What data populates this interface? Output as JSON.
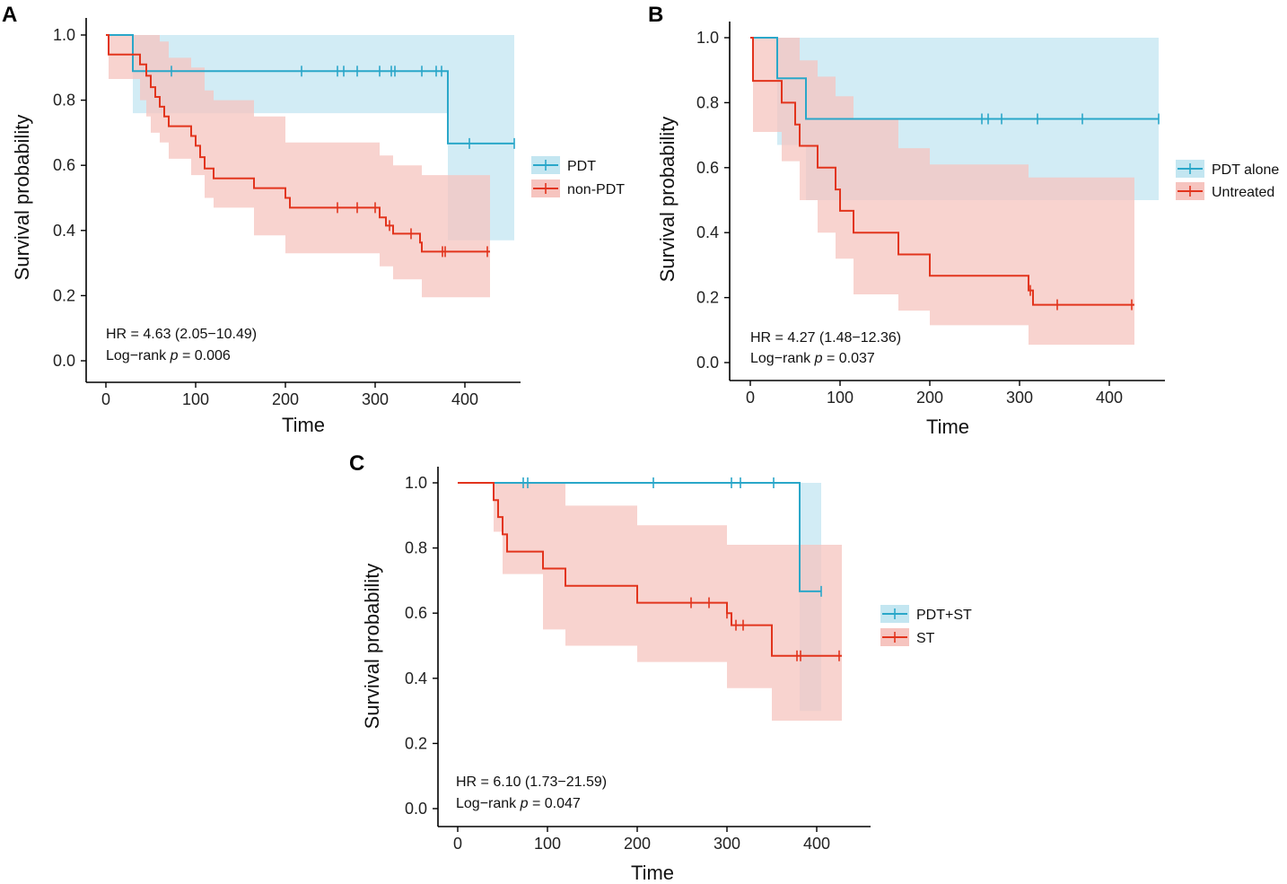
{
  "figure": {
    "colors": {
      "blue": "#2aa7c9",
      "red": "#e2341d",
      "blue_band": "#c3e6f1",
      "red_band": "#f6c4bf"
    }
  },
  "chart_data": [
    {
      "panel": "A",
      "type": "line",
      "subtype": "kaplan-meier",
      "xlabel": "Time",
      "ylabel": "Survival probability",
      "xlim": [
        0,
        460
      ],
      "ylim": [
        0,
        1
      ],
      "xticks": [
        "0",
        "100",
        "200",
        "300",
        "400"
      ],
      "xtick_values": [
        0,
        100,
        200,
        300,
        400
      ],
      "yticks": [
        "0.0",
        "0.2",
        "0.4",
        "0.6",
        "0.8",
        "1.0"
      ],
      "ytick_values": [
        0,
        0.2,
        0.4,
        0.6,
        0.8,
        1.0
      ],
      "legend_position": "right",
      "annotation": {
        "hr": "HR = 4.63 (2.05−10.49)",
        "logrank_prefix": "Log−rank",
        "p_symbol": "p",
        "p_value": "= 0.006"
      },
      "series": [
        {
          "name": "PDT",
          "color": "blue",
          "steps": [
            [
              0,
              1.0
            ],
            [
              30,
              0.889
            ],
            [
              381,
              0.667
            ]
          ],
          "end": 455,
          "ci": [
            [
              0,
              1.0,
              1.0
            ],
            [
              30,
              1.0,
              0.76
            ],
            [
              381,
              1.0,
              0.37
            ]
          ],
          "censors": [
            73,
            218,
            258,
            265,
            280,
            305,
            318,
            322,
            352,
            368,
            374,
            405,
            455
          ]
        },
        {
          "name": "non-PDT",
          "color": "red",
          "steps": [
            [
              0,
              1.0
            ],
            [
              3,
              0.94
            ],
            [
              38,
              0.91
            ],
            [
              45,
              0.875
            ],
            [
              50,
              0.84
            ],
            [
              55,
              0.81
            ],
            [
              60,
              0.78
            ],
            [
              65,
              0.75
            ],
            [
              70,
              0.72
            ],
            [
              95,
              0.69
            ],
            [
              100,
              0.66
            ],
            [
              105,
              0.625
            ],
            [
              110,
              0.59
            ],
            [
              120,
              0.56
            ],
            [
              165,
              0.53
            ],
            [
              200,
              0.5
            ],
            [
              205,
              0.47
            ],
            [
              305,
              0.44
            ],
            [
              312,
              0.415
            ],
            [
              320,
              0.39
            ],
            [
              350,
              0.363
            ],
            [
              352,
              0.335
            ]
          ],
          "end": 428,
          "ci": [
            [
              0,
              1.0,
              1.0
            ],
            [
              3,
              1.0,
              0.865
            ],
            [
              38,
              1.0,
              0.8
            ],
            [
              45,
              1.0,
              0.75
            ],
            [
              50,
              1.0,
              0.7
            ],
            [
              60,
              0.98,
              0.67
            ],
            [
              70,
              0.93,
              0.62
            ],
            [
              95,
              0.9,
              0.57
            ],
            [
              110,
              0.83,
              0.5
            ],
            [
              120,
              0.8,
              0.47
            ],
            [
              165,
              0.75,
              0.385
            ],
            [
              200,
              0.67,
              0.33
            ],
            [
              305,
              0.63,
              0.29
            ],
            [
              320,
              0.6,
              0.25
            ],
            [
              352,
              0.57,
              0.195
            ]
          ],
          "censors": [
            258,
            280,
            300,
            316,
            340,
            375,
            378,
            425
          ]
        }
      ]
    },
    {
      "panel": "B",
      "type": "line",
      "subtype": "kaplan-meier",
      "xlabel": "Time",
      "ylabel": "Survival probability",
      "xlim": [
        0,
        460
      ],
      "ylim": [
        0,
        1
      ],
      "xticks": [
        "0",
        "100",
        "200",
        "300",
        "400"
      ],
      "xtick_values": [
        0,
        100,
        200,
        300,
        400
      ],
      "yticks": [
        "0.0",
        "0.2",
        "0.4",
        "0.6",
        "0.8",
        "1.0"
      ],
      "ytick_values": [
        0,
        0.2,
        0.4,
        0.6,
        0.8,
        1.0
      ],
      "legend_position": "right",
      "annotation": {
        "hr": "HR = 4.27 (1.48−12.36)",
        "logrank_prefix": "Log−rank",
        "p_symbol": "p",
        "p_value": "= 0.037"
      },
      "series": [
        {
          "name": "PDT alone",
          "color": "blue",
          "steps": [
            [
              0,
              1.0
            ],
            [
              30,
              0.875
            ],
            [
              62,
              0.75
            ]
          ],
          "end": 455,
          "ci": [
            [
              0,
              1.0,
              1.0
            ],
            [
              30,
              1.0,
              0.67
            ],
            [
              62,
              1.0,
              0.5
            ]
          ],
          "censors": [
            258,
            265,
            280,
            320,
            370,
            455
          ]
        },
        {
          "name": "Untreated",
          "color": "red",
          "steps": [
            [
              0,
              1.0
            ],
            [
              3,
              0.867
            ],
            [
              35,
              0.8
            ],
            [
              50,
              0.733
            ],
            [
              55,
              0.667
            ],
            [
              75,
              0.6
            ],
            [
              95,
              0.533
            ],
            [
              100,
              0.467
            ],
            [
              115,
              0.4
            ],
            [
              165,
              0.333
            ],
            [
              200,
              0.267
            ],
            [
              310,
              0.222
            ],
            [
              315,
              0.178
            ]
          ],
          "end": 428,
          "ci": [
            [
              0,
              1.0,
              1.0
            ],
            [
              3,
              1.0,
              0.71
            ],
            [
              35,
              1.0,
              0.62
            ],
            [
              55,
              0.93,
              0.5
            ],
            [
              75,
              0.88,
              0.4
            ],
            [
              95,
              0.82,
              0.32
            ],
            [
              115,
              0.75,
              0.21
            ],
            [
              165,
              0.66,
              0.16
            ],
            [
              200,
              0.61,
              0.115
            ],
            [
              310,
              0.57,
              0.055
            ]
          ],
          "censors": [
            312,
            342,
            425
          ]
        }
      ]
    },
    {
      "panel": "C",
      "type": "line",
      "subtype": "kaplan-meier",
      "xlabel": "Time",
      "ylabel": "Survival probability",
      "xlim": [
        0,
        445
      ],
      "ylim": [
        0,
        1
      ],
      "xticks": [
        "0",
        "100",
        "200",
        "300",
        "400"
      ],
      "xtick_values": [
        0,
        100,
        200,
        300,
        400
      ],
      "yticks": [
        "0.0",
        "0.2",
        "0.4",
        "0.6",
        "0.8",
        "1.0"
      ],
      "ytick_values": [
        0,
        0.2,
        0.4,
        0.6,
        0.8,
        1.0
      ],
      "legend_position": "right",
      "annotation": {
        "hr": "HR = 6.10 (1.73−21.59)",
        "logrank_prefix": "Log−rank",
        "p_symbol": "p",
        "p_value": "= 0.047"
      },
      "series": [
        {
          "name": "PDT+ST",
          "color": "blue",
          "steps": [
            [
              0,
              1.0
            ],
            [
              381,
              0.667
            ]
          ],
          "end": 405,
          "ci": [
            [
              0,
              1.0,
              1.0
            ],
            [
              381,
              1.0,
              0.3
            ]
          ],
          "censors": [
            73,
            78,
            218,
            305,
            315,
            352,
            405
          ]
        },
        {
          "name": "ST",
          "color": "red",
          "steps": [
            [
              0,
              1.0
            ],
            [
              40,
              0.947
            ],
            [
              45,
              0.895
            ],
            [
              50,
              0.842
            ],
            [
              55,
              0.789
            ],
            [
              95,
              0.737
            ],
            [
              120,
              0.684
            ],
            [
              200,
              0.632
            ],
            [
              300,
              0.6
            ],
            [
              305,
              0.563
            ],
            [
              350,
              0.469
            ]
          ],
          "end": 428,
          "ci": [
            [
              0,
              1.0,
              1.0
            ],
            [
              40,
              1.0,
              0.85
            ],
            [
              50,
              1.0,
              0.72
            ],
            [
              95,
              1.0,
              0.55
            ],
            [
              120,
              0.93,
              0.5
            ],
            [
              200,
              0.87,
              0.45
            ],
            [
              300,
              0.81,
              0.37
            ],
            [
              350,
              0.81,
              0.27
            ]
          ],
          "censors": [
            260,
            280,
            300,
            310,
            318,
            378,
            382,
            425
          ]
        }
      ]
    }
  ]
}
